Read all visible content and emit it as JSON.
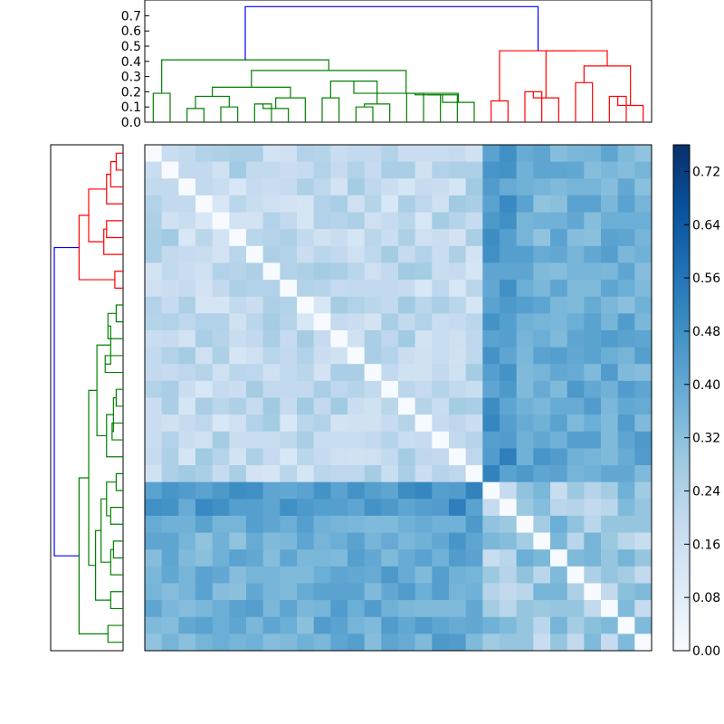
{
  "chart_data": [
    {
      "type": "dendrogram",
      "orientation": "top",
      "ylim": [
        0,
        0.8
      ],
      "y_ticks": [
        "0.0",
        "0.1",
        "0.2",
        "0.3",
        "0.4",
        "0.5",
        "0.6",
        "0.7"
      ],
      "link_colors": {
        "root": "#0000ff",
        "cluster_a": "#008000",
        "cluster_b": "#ff0000"
      }
    },
    {
      "type": "dendrogram",
      "orientation": "left",
      "link_colors": {
        "root": "#0000ff",
        "cluster_a": "#008000",
        "cluster_b": "#ff0000"
      }
    },
    {
      "type": "heatmap",
      "rows": 30,
      "cols": 30,
      "colormap": "Blues",
      "vmin": 0.0,
      "vmax": 0.76,
      "colorbar_ticks": [
        "0.00",
        "0.08",
        "0.16",
        "0.24",
        "0.32",
        "0.40",
        "0.48",
        "0.56",
        "0.64",
        "0.72"
      ],
      "cluster_a_size": 20,
      "cluster_b_size": 10,
      "values": []
    }
  ]
}
